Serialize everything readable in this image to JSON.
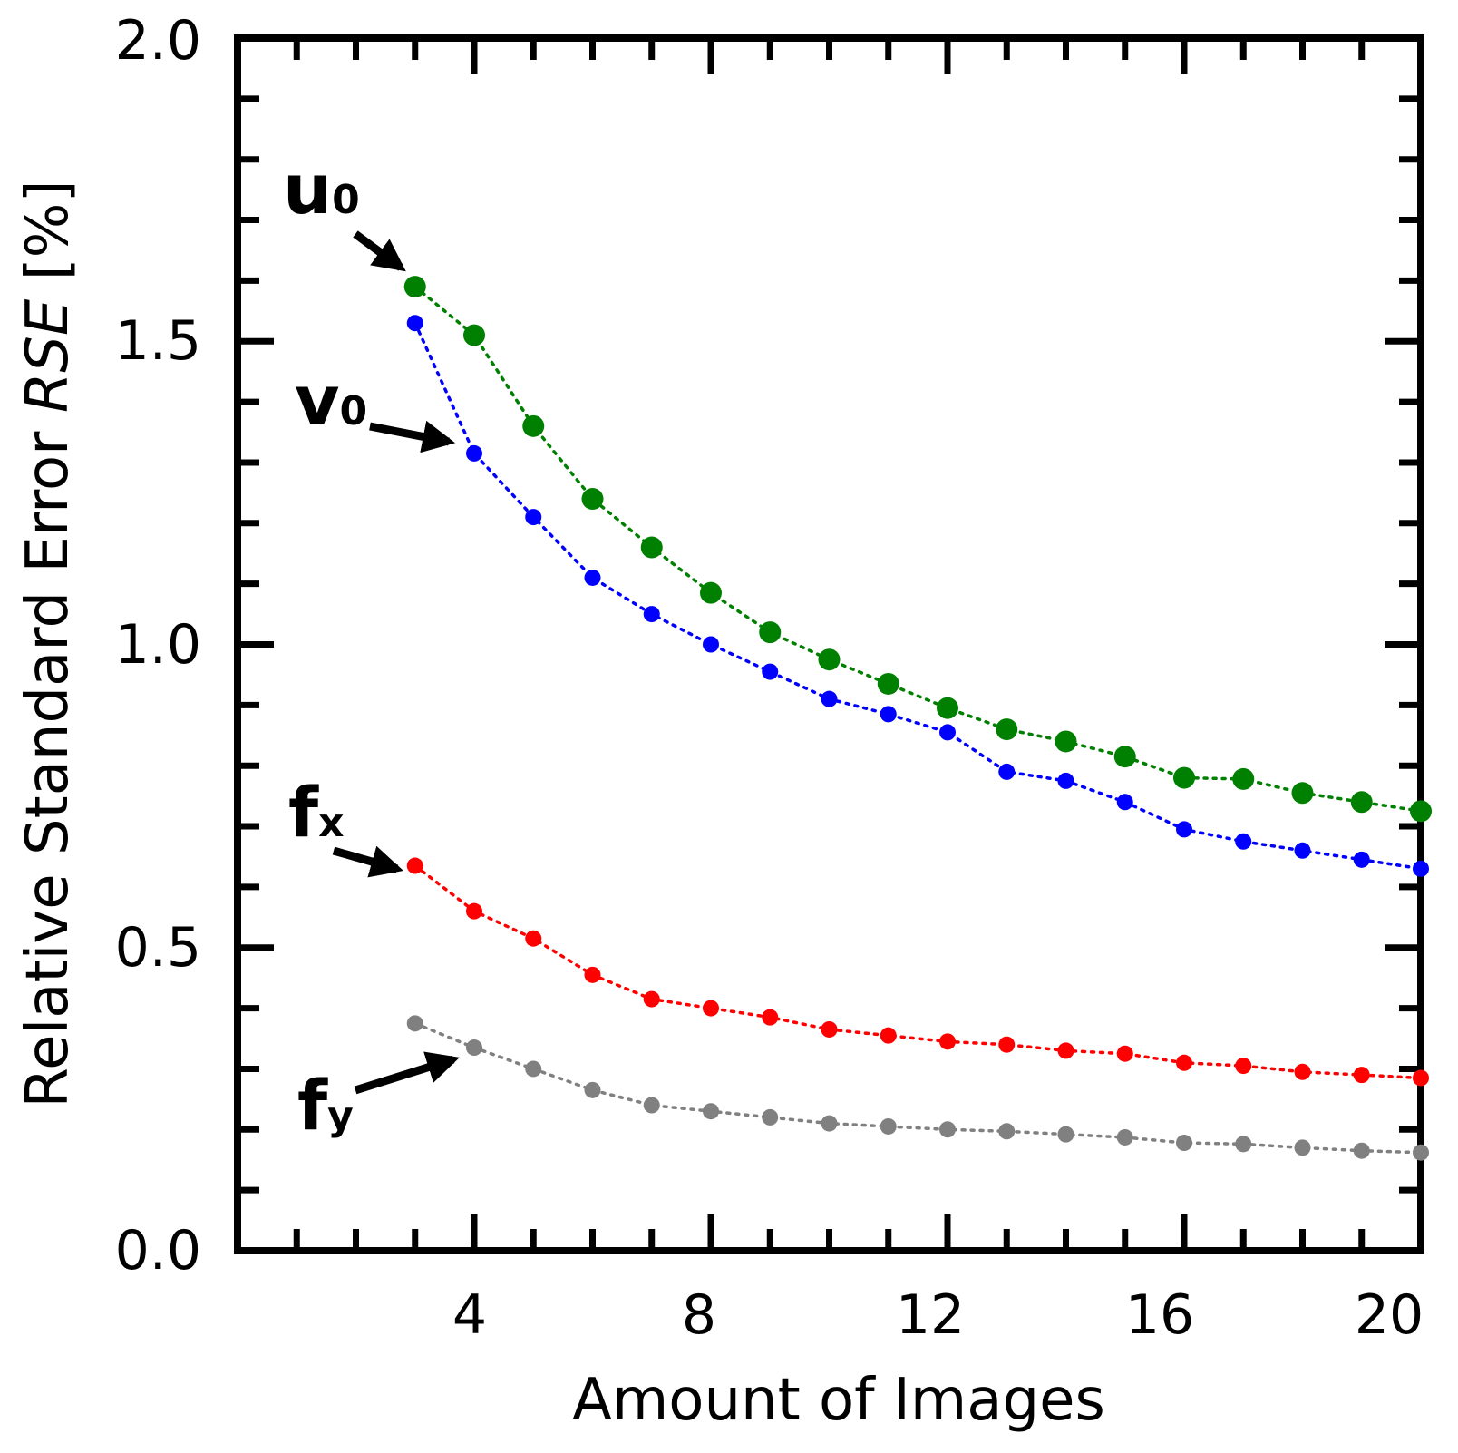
{
  "chart_data": {
    "type": "line",
    "title": "",
    "xlabel": "Amount of Images",
    "ylabel_prefix": "Relative Standard Error ",
    "ylabel_italic": "RSE",
    "ylabel_suffix": " [%]",
    "xlim": [
      0,
      20
    ],
    "ylim": [
      0.0,
      2.0
    ],
    "x_major_ticks": [
      4,
      8,
      12,
      16,
      20
    ],
    "x_tick_labels": [
      "4",
      "8",
      "12",
      "16",
      "20"
    ],
    "y_major_ticks": [
      0.0,
      0.5,
      1.0,
      1.5,
      2.0
    ],
    "y_tick_labels": [
      "0.0",
      "0.5",
      "1.0",
      "1.5",
      "2.0"
    ],
    "grid": false,
    "x": [
      3,
      4,
      5,
      6,
      7,
      8,
      9,
      10,
      11,
      12,
      13,
      14,
      15,
      16,
      17,
      18,
      19,
      20
    ],
    "series": [
      {
        "name": "u0",
        "label_main": "u",
        "label_sub": "0",
        "color": "#008000",
        "marker": "large",
        "values": [
          1.59,
          1.51,
          1.36,
          1.24,
          1.16,
          1.085,
          1.02,
          0.975,
          0.935,
          0.895,
          0.86,
          0.84,
          0.815,
          0.78,
          0.778,
          0.755,
          0.74,
          0.725
        ]
      },
      {
        "name": "v0",
        "label_main": "v",
        "label_sub": "0",
        "color": "#0000ff",
        "marker": "small",
        "values": [
          1.53,
          1.315,
          1.21,
          1.11,
          1.05,
          1.0,
          0.955,
          0.91,
          0.885,
          0.855,
          0.79,
          0.775,
          0.74,
          0.695,
          0.675,
          0.66,
          0.645,
          0.63
        ]
      },
      {
        "name": "fx",
        "label_main": "f",
        "label_sub": "x",
        "color": "#ff0000",
        "marker": "small",
        "values": [
          0.635,
          0.56,
          0.515,
          0.455,
          0.415,
          0.4,
          0.385,
          0.365,
          0.355,
          0.345,
          0.34,
          0.33,
          0.325,
          0.31,
          0.305,
          0.295,
          0.29,
          0.285
        ]
      },
      {
        "name": "fy",
        "label_main": "f",
        "label_sub": "y",
        "color": "#808080",
        "marker": "small",
        "values": [
          0.375,
          0.335,
          0.3,
          0.265,
          0.24,
          0.23,
          0.22,
          0.21,
          0.205,
          0.2,
          0.197,
          0.192,
          0.187,
          0.178,
          0.176,
          0.17,
          0.165,
          0.162
        ]
      }
    ]
  }
}
